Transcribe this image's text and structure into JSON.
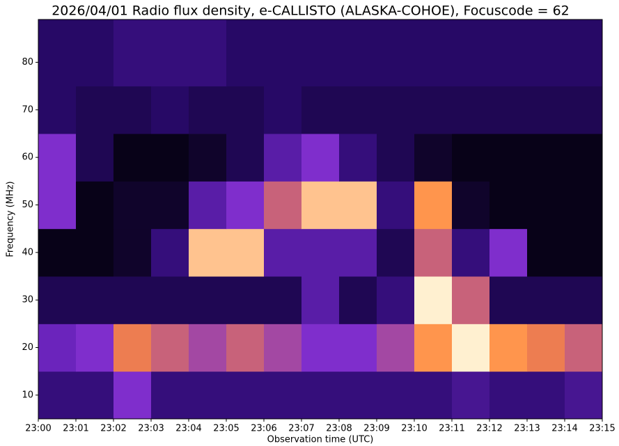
{
  "chart_data": {
    "type": "heatmap",
    "title": "2026/04/01 Radio flux density, e-CALLISTO (ALASKA-COHOE), Focuscode = 62",
    "x_label": "Observation time (UTC)",
    "y_label": "Frequency (MHz)",
    "xlim": [
      "23:00",
      "23:15"
    ],
    "xticks": [
      "23:00",
      "23:01",
      "23:02",
      "23:03",
      "23:04",
      "23:05",
      "23:06",
      "23:07",
      "23:08",
      "23:09",
      "23:10",
      "23:11",
      "23:12",
      "23:13",
      "23:14",
      "23:15"
    ],
    "ylim": [
      5,
      89
    ],
    "yticks": [
      10,
      20,
      30,
      40,
      50,
      60,
      70,
      80
    ],
    "y_bins": [
      5,
      15,
      25,
      35,
      45,
      55,
      65,
      75,
      89
    ],
    "z": [
      [
        0.3,
        0.3,
        0.5,
        0.3,
        0.3,
        0.3,
        0.3,
        0.3,
        0.3,
        0.3,
        0.3,
        0.35,
        0.3,
        0.3,
        0.35
      ],
      [
        0.45,
        0.5,
        0.65,
        0.6,
        0.55,
        0.6,
        0.55,
        0.5,
        0.5,
        0.55,
        0.7,
        0.9,
        0.7,
        0.65,
        0.6
      ],
      [
        0.2,
        0.2,
        0.2,
        0.2,
        0.2,
        0.2,
        0.2,
        0.4,
        0.2,
        0.3,
        0.9,
        0.6,
        0.2,
        0.2,
        0.2
      ],
      [
        0.05,
        0.05,
        0.1,
        0.3,
        0.8,
        0.8,
        0.4,
        0.4,
        0.4,
        0.2,
        0.6,
        0.3,
        0.5,
        0.05,
        0.05
      ],
      [
        0.5,
        0.05,
        0.1,
        0.1,
        0.4,
        0.5,
        0.6,
        0.8,
        0.8,
        0.3,
        0.7,
        0.1,
        0.05,
        0.05,
        0.05
      ],
      [
        0.5,
        0.2,
        0.05,
        0.05,
        0.1,
        0.2,
        0.4,
        0.5,
        0.3,
        0.2,
        0.1,
        0.05,
        0.05,
        0.05,
        0.05
      ],
      [
        0.25,
        0.2,
        0.2,
        0.25,
        0.2,
        0.2,
        0.25,
        0.2,
        0.2,
        0.2,
        0.2,
        0.2,
        0.2,
        0.2,
        0.2
      ],
      [
        0.25,
        0.25,
        0.3,
        0.3,
        0.3,
        0.25,
        0.25,
        0.25,
        0.25,
        0.25,
        0.25,
        0.25,
        0.25,
        0.25,
        0.25
      ]
    ]
  }
}
